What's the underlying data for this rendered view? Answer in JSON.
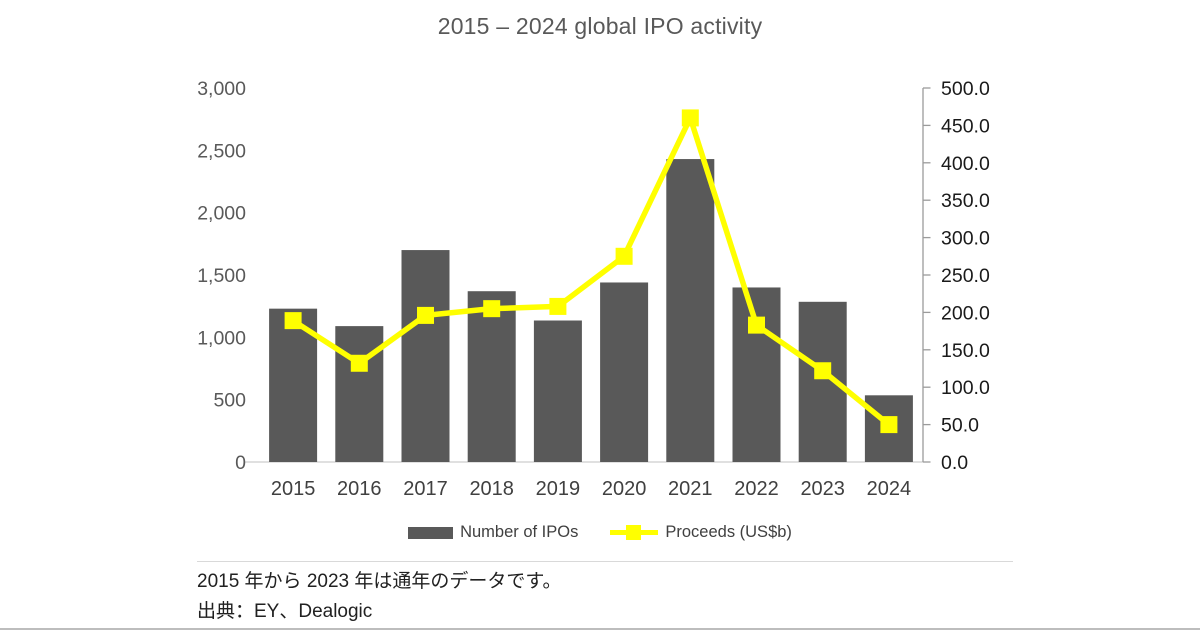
{
  "title": "2015 – 2024 global IPO activity",
  "chart_data": {
    "type": "combo bar+line",
    "title": "2015 – 2024 global IPO activity",
    "categories": [
      "2015",
      "2016",
      "2017",
      "2018",
      "2019",
      "2020",
      "2021",
      "2022",
      "2023",
      "2024"
    ],
    "series": [
      {
        "name": "Number of IPOs",
        "type": "bar",
        "axis": "left",
        "color": "#595959",
        "values": [
          1230,
          1090,
          1700,
          1370,
          1135,
          1440,
          2430,
          1400,
          1285,
          535
        ]
      },
      {
        "name": "Proceeds (US$b)",
        "type": "line",
        "axis": "right",
        "color": "#ffff00",
        "marker": "square",
        "values": [
          189,
          132,
          196,
          205,
          208,
          275,
          460,
          183,
          122,
          50
        ]
      }
    ],
    "left_axis": {
      "min": 0,
      "max": 3000,
      "step": 500,
      "tick_labels": [
        "0",
        "500",
        "1,000",
        "1,500",
        "2,000",
        "2,500",
        "3,000"
      ]
    },
    "right_axis": {
      "min": 0,
      "max": 500,
      "step": 50,
      "tick_labels": [
        "0.0",
        "50.0",
        "100.0",
        "150.0",
        "200.0",
        "250.0",
        "300.0",
        "350.0",
        "400.0",
        "450.0",
        "500.0"
      ]
    },
    "grid": "off",
    "legend_position": "bottom"
  },
  "legend": {
    "bar_label": "Number of IPOs",
    "line_label": "Proceeds (US$b)"
  },
  "notes": {
    "line1": "2015 年から 2023 年は通年のデータです。",
    "line2": "出典：EY、Dealogic"
  },
  "colors": {
    "bar": "#595959",
    "line": "#ffff00",
    "title_text": "#595959",
    "left_axis_text": "#595959",
    "right_axis_text": "#1a1a1a",
    "x_axis_text": "#404040",
    "axis_line": "#9b9b9b",
    "baseline": "#d6d6d6"
  }
}
